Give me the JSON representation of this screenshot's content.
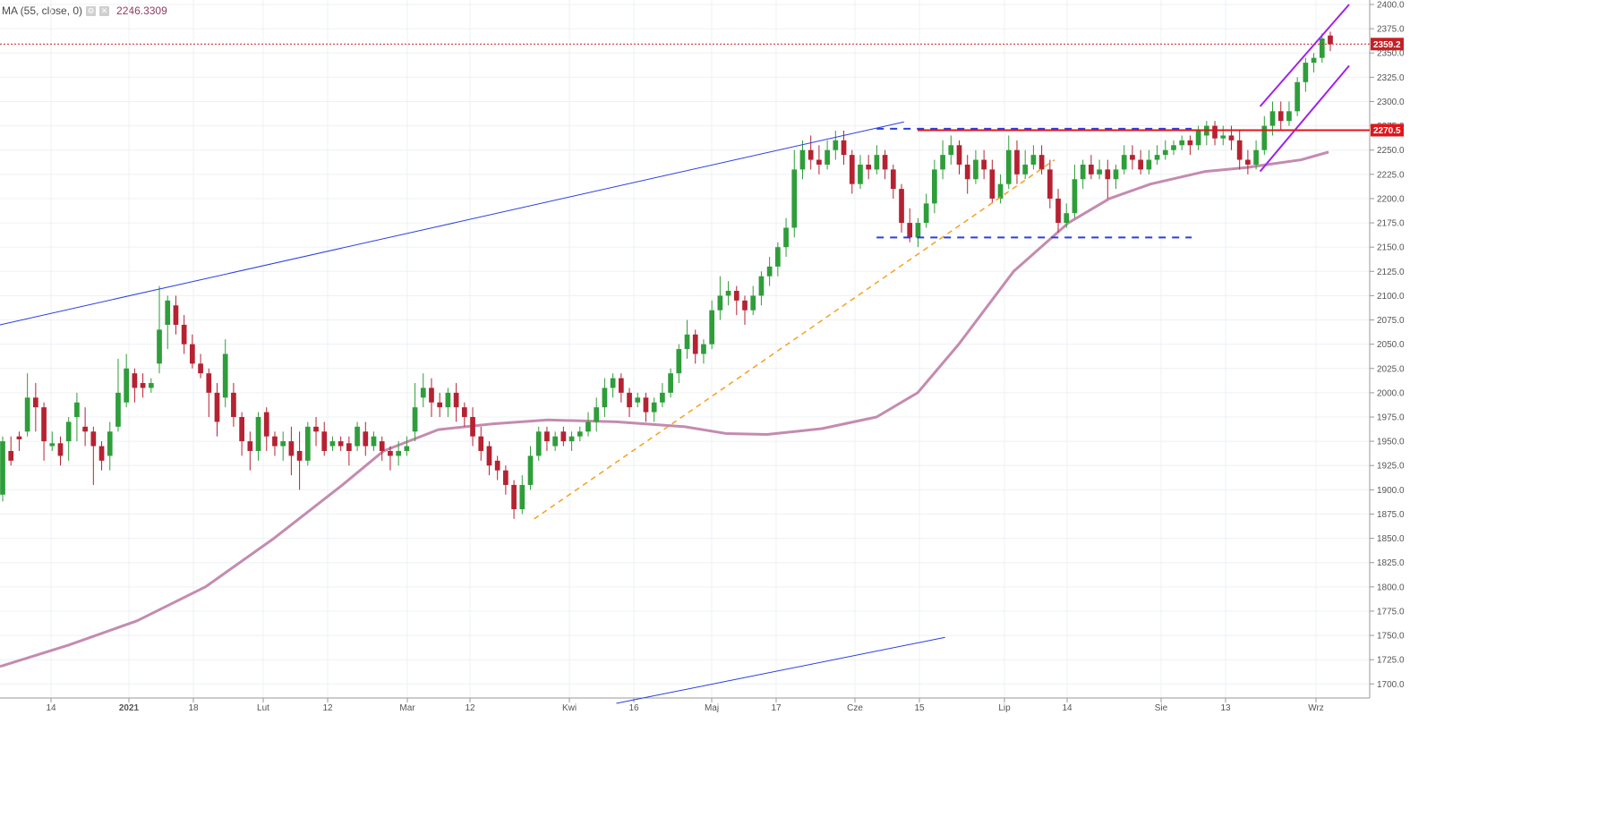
{
  "legend": {
    "indicator": "MA (55, close, 0)",
    "value": "2246.3309"
  },
  "colors": {
    "up": "#2e9e3a",
    "down": "#b52232",
    "ma": "#c48bb0",
    "grid": "#eef0f4",
    "price_line": "#c42026",
    "resistance": "#e0161b",
    "blue_line": "#2a3fe0",
    "channel": "#a020f0",
    "orange": "#f5a020"
  },
  "chart_data": {
    "type": "candlestick",
    "y_axis": {
      "min": 1680,
      "max": 2400,
      "ticks": [
        1700,
        1725,
        1750,
        1775,
        1800,
        1825,
        1850,
        1875,
        1900,
        1925,
        1950,
        1975,
        2000,
        2025,
        2050,
        2075,
        2100,
        2125,
        2150,
        2175,
        2200,
        2225,
        2250,
        2275,
        2300,
        2325,
        2350,
        2375,
        2400
      ]
    },
    "x_labels": [
      "14",
      "2021",
      "18",
      "Lut",
      "12",
      "Mar",
      "12",
      "Kwi",
      "16",
      "Maj",
      "17",
      "Cze",
      "15",
      "Lip",
      "14",
      "Sie",
      "13",
      "Wrz"
    ],
    "price_tags": [
      {
        "label": "2359.2",
        "value": 2359.2,
        "style": "last-price"
      },
      {
        "label": "2270.5",
        "value": 2270.5,
        "style": "resistance"
      }
    ],
    "candles": [
      [
        1895,
        1950,
        1888,
        1955
      ],
      [
        1940,
        1930,
        1925,
        1955
      ],
      [
        1955,
        1952,
        1940,
        1960
      ],
      [
        1960,
        1995,
        1955,
        2020
      ],
      [
        1995,
        1985,
        1960,
        2010
      ],
      [
        1985,
        1950,
        1930,
        1990
      ],
      [
        1945,
        1948,
        1940,
        1960
      ],
      [
        1948,
        1935,
        1925,
        1955
      ],
      [
        1950,
        1970,
        1930,
        1975
      ],
      [
        1975,
        1990,
        1950,
        2000
      ],
      [
        1965,
        1960,
        1945,
        1985
      ],
      [
        1960,
        1945,
        1905,
        1965
      ],
      [
        1945,
        1930,
        1920,
        1950
      ],
      [
        1935,
        1960,
        1920,
        1970
      ],
      [
        1965,
        2000,
        1960,
        2035
      ],
      [
        1990,
        2025,
        1985,
        2040
      ],
      [
        2020,
        2005,
        1990,
        2025
      ],
      [
        2010,
        2005,
        1995,
        2020
      ],
      [
        2005,
        2010,
        2000,
        2015
      ],
      [
        2030,
        2065,
        2020,
        2110
      ],
      [
        2070,
        2095,
        2045,
        2100
      ],
      [
        2090,
        2070,
        2060,
        2100
      ],
      [
        2070,
        2050,
        2040,
        2080
      ],
      [
        2050,
        2030,
        2025,
        2060
      ],
      [
        2030,
        2020,
        2015,
        2040
      ],
      [
        2020,
        2000,
        1975,
        2025
      ],
      [
        2000,
        1970,
        1955,
        2010
      ],
      [
        1995,
        2040,
        1985,
        2055
      ],
      [
        2000,
        1975,
        1965,
        2010
      ],
      [
        1975,
        1950,
        1935,
        1980
      ],
      [
        1950,
        1940,
        1920,
        1960
      ],
      [
        1940,
        1975,
        1930,
        1980
      ],
      [
        1980,
        1955,
        1940,
        1985
      ],
      [
        1955,
        1945,
        1935,
        1960
      ],
      [
        1945,
        1950,
        1930,
        1960
      ],
      [
        1950,
        1935,
        1915,
        1965
      ],
      [
        1940,
        1930,
        1900,
        1960
      ],
      [
        1930,
        1965,
        1925,
        1970
      ],
      [
        1965,
        1960,
        1945,
        1975
      ],
      [
        1960,
        1940,
        1935,
        1970
      ],
      [
        1945,
        1950,
        1940,
        1955
      ],
      [
        1950,
        1945,
        1940,
        1955
      ],
      [
        1948,
        1940,
        1925,
        1955
      ],
      [
        1945,
        1965,
        1940,
        1970
      ],
      [
        1960,
        1945,
        1935,
        1970
      ],
      [
        1945,
        1955,
        1940,
        1960
      ],
      [
        1950,
        1940,
        1930,
        1955
      ],
      [
        1940,
        1935,
        1920,
        1945
      ],
      [
        1935,
        1940,
        1925,
        1950
      ],
      [
        1940,
        1945,
        1935,
        1955
      ],
      [
        1960,
        1985,
        1950,
        2010
      ],
      [
        1995,
        2005,
        1985,
        2020
      ],
      [
        2005,
        1990,
        1975,
        2015
      ],
      [
        1990,
        1985,
        1975,
        2000
      ],
      [
        1985,
        2000,
        1975,
        2005
      ],
      [
        2000,
        1985,
        1970,
        2010
      ],
      [
        1985,
        1975,
        1965,
        1990
      ],
      [
        1975,
        1955,
        1945,
        1985
      ],
      [
        1955,
        1940,
        1930,
        1965
      ],
      [
        1945,
        1925,
        1915,
        1950
      ],
      [
        1930,
        1920,
        1910,
        1935
      ],
      [
        1920,
        1905,
        1895,
        1925
      ],
      [
        1905,
        1880,
        1870,
        1910
      ],
      [
        1880,
        1905,
        1875,
        1915
      ],
      [
        1905,
        1935,
        1900,
        1945
      ],
      [
        1935,
        1960,
        1930,
        1965
      ],
      [
        1960,
        1950,
        1940,
        1965
      ],
      [
        1945,
        1955,
        1940,
        1960
      ],
      [
        1960,
        1950,
        1945,
        1965
      ],
      [
        1950,
        1955,
        1940,
        1960
      ],
      [
        1955,
        1960,
        1950,
        1965
      ],
      [
        1960,
        1970,
        1955,
        1980
      ],
      [
        1970,
        1985,
        1960,
        1995
      ],
      [
        1985,
        2005,
        1975,
        2015
      ],
      [
        2005,
        2015,
        1995,
        2020
      ],
      [
        2015,
        2000,
        1990,
        2020
      ],
      [
        2000,
        1985,
        1975,
        2005
      ],
      [
        1990,
        1995,
        1985,
        2000
      ],
      [
        1995,
        1980,
        1970,
        2000
      ],
      [
        1980,
        1990,
        1970,
        1995
      ],
      [
        1990,
        2000,
        1985,
        2010
      ],
      [
        2000,
        2020,
        1995,
        2025
      ],
      [
        2020,
        2045,
        2010,
        2050
      ],
      [
        2045,
        2060,
        2035,
        2075
      ],
      [
        2060,
        2040,
        2030,
        2065
      ],
      [
        2040,
        2050,
        2030,
        2055
      ],
      [
        2050,
        2085,
        2045,
        2095
      ],
      [
        2085,
        2100,
        2075,
        2120
      ],
      [
        2100,
        2105,
        2090,
        2115
      ],
      [
        2105,
        2095,
        2080,
        2110
      ],
      [
        2095,
        2085,
        2070,
        2100
      ],
      [
        2085,
        2100,
        2080,
        2110
      ],
      [
        2100,
        2120,
        2090,
        2125
      ],
      [
        2120,
        2130,
        2110,
        2140
      ],
      [
        2130,
        2150,
        2120,
        2155
      ],
      [
        2150,
        2170,
        2140,
        2180
      ],
      [
        2170,
        2230,
        2160,
        2250
      ],
      [
        2230,
        2250,
        2220,
        2260
      ],
      [
        2250,
        2240,
        2230,
        2265
      ],
      [
        2240,
        2235,
        2225,
        2255
      ],
      [
        2235,
        2250,
        2230,
        2260
      ],
      [
        2250,
        2260,
        2240,
        2270
      ],
      [
        2260,
        2245,
        2235,
        2270
      ],
      [
        2245,
        2215,
        2205,
        2250
      ],
      [
        2215,
        2235,
        2210,
        2245
      ],
      [
        2235,
        2230,
        2220,
        2245
      ],
      [
        2230,
        2245,
        2225,
        2255
      ],
      [
        2245,
        2230,
        2220,
        2250
      ],
      [
        2230,
        2210,
        2200,
        2235
      ],
      [
        2210,
        2175,
        2165,
        2215
      ],
      [
        2175,
        2160,
        2155,
        2190
      ],
      [
        2160,
        2175,
        2150,
        2180
      ],
      [
        2175,
        2195,
        2170,
        2205
      ],
      [
        2195,
        2230,
        2185,
        2240
      ],
      [
        2230,
        2245,
        2220,
        2260
      ],
      [
        2245,
        2255,
        2235,
        2265
      ],
      [
        2255,
        2235,
        2225,
        2260
      ],
      [
        2235,
        2220,
        2205,
        2245
      ],
      [
        2220,
        2240,
        2215,
        2250
      ],
      [
        2240,
        2230,
        2220,
        2250
      ],
      [
        2230,
        2200,
        2195,
        2240
      ],
      [
        2200,
        2215,
        2195,
        2225
      ],
      [
        2215,
        2250,
        2210,
        2265
      ],
      [
        2250,
        2225,
        2215,
        2260
      ],
      [
        2225,
        2235,
        2220,
        2250
      ],
      [
        2235,
        2245,
        2230,
        2255
      ],
      [
        2245,
        2230,
        2225,
        2255
      ],
      [
        2230,
        2200,
        2190,
        2240
      ],
      [
        2200,
        2175,
        2165,
        2210
      ],
      [
        2175,
        2185,
        2170,
        2195
      ],
      [
        2185,
        2220,
        2180,
        2235
      ],
      [
        2220,
        2235,
        2210,
        2240
      ],
      [
        2235,
        2225,
        2220,
        2245
      ],
      [
        2225,
        2230,
        2220,
        2240
      ],
      [
        2230,
        2220,
        2200,
        2240
      ],
      [
        2220,
        2230,
        2210,
        2235
      ],
      [
        2230,
        2245,
        2225,
        2255
      ],
      [
        2245,
        2240,
        2230,
        2255
      ],
      [
        2240,
        2230,
        2225,
        2250
      ],
      [
        2230,
        2240,
        2225,
        2250
      ],
      [
        2240,
        2245,
        2235,
        2255
      ],
      [
        2245,
        2250,
        2240,
        2260
      ],
      [
        2250,
        2255,
        2245,
        2260
      ],
      [
        2255,
        2260,
        2250,
        2265
      ],
      [
        2260,
        2255,
        2245,
        2265
      ],
      [
        2255,
        2270,
        2250,
        2275
      ],
      [
        2265,
        2275,
        2255,
        2280
      ],
      [
        2275,
        2262,
        2255,
        2280
      ],
      [
        2262,
        2265,
        2255,
        2275
      ],
      [
        2265,
        2260,
        2250,
        2275
      ],
      [
        2260,
        2240,
        2230,
        2270
      ],
      [
        2240,
        2235,
        2225,
        2250
      ],
      [
        2235,
        2250,
        2230,
        2260
      ],
      [
        2250,
        2275,
        2245,
        2285
      ],
      [
        2275,
        2290,
        2265,
        2300
      ],
      [
        2290,
        2280,
        2270,
        2300
      ],
      [
        2280,
        2290,
        2275,
        2300
      ],
      [
        2290,
        2320,
        2285,
        2325
      ],
      [
        2320,
        2340,
        2310,
        2345
      ],
      [
        2340,
        2345,
        2330,
        2350
      ],
      [
        2345,
        2365,
        2340,
        2370
      ],
      [
        2368,
        2359,
        2352,
        2372
      ]
    ],
    "ma55": [
      [
        0,
        1718
      ],
      [
        0.05,
        1740
      ],
      [
        0.1,
        1765
      ],
      [
        0.15,
        1800
      ],
      [
        0.2,
        1850
      ],
      [
        0.25,
        1905
      ],
      [
        0.28,
        1940
      ],
      [
        0.32,
        1962
      ],
      [
        0.36,
        1968
      ],
      [
        0.4,
        1972
      ],
      [
        0.45,
        1970
      ],
      [
        0.5,
        1965
      ],
      [
        0.53,
        1958
      ],
      [
        0.56,
        1957
      ],
      [
        0.6,
        1963
      ],
      [
        0.64,
        1975
      ],
      [
        0.67,
        2000
      ],
      [
        0.7,
        2050
      ],
      [
        0.74,
        2125
      ],
      [
        0.78,
        2175
      ],
      [
        0.81,
        2200
      ],
      [
        0.84,
        2215
      ],
      [
        0.88,
        2228
      ],
      [
        0.91,
        2232
      ],
      [
        0.95,
        2240
      ],
      [
        0.97,
        2248
      ]
    ]
  },
  "drawings": {
    "upper_trend": [
      [
        0,
        2070
      ],
      [
        0.66,
        2279
      ]
    ],
    "lower_trend": [
      [
        0.45,
        1680
      ],
      [
        0.69,
        1748
      ]
    ],
    "orange_trend": [
      [
        0.39,
        1870
      ],
      [
        0.77,
        2240
      ]
    ],
    "box_top": [
      [
        0.64,
        2272
      ],
      [
        0.87,
        2272
      ]
    ],
    "box_bottom": [
      [
        0.64,
        2160
      ],
      [
        0.87,
        2160
      ]
    ],
    "channel_upper": [
      [
        0.92,
        2295
      ],
      [
        0.985,
        2400
      ]
    ],
    "channel_lower": [
      [
        0.92,
        2228
      ],
      [
        0.985,
        2337
      ]
    ]
  }
}
